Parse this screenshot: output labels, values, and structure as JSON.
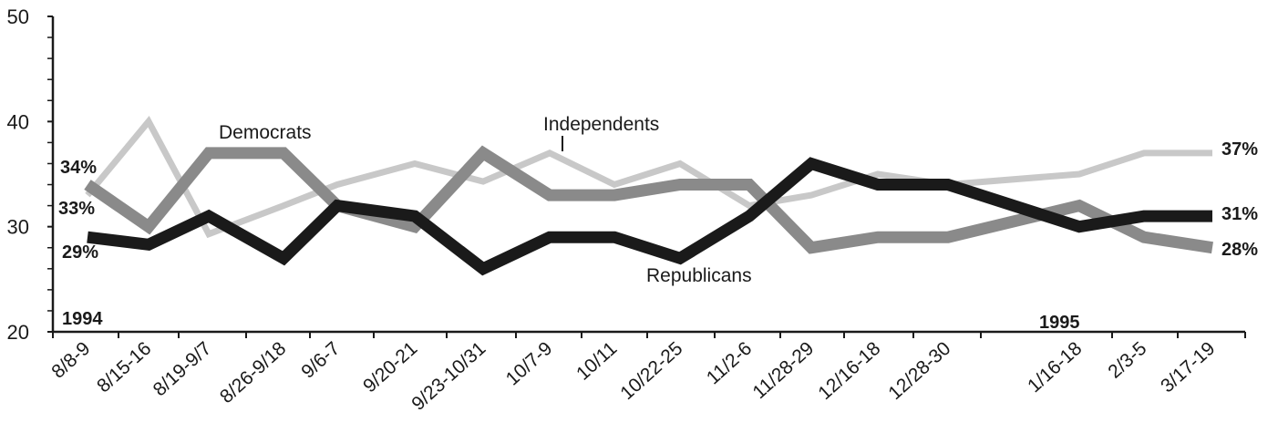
{
  "chart_data": {
    "type": "line",
    "title": "",
    "xlabel": "",
    "ylabel": "",
    "ylim": [
      20,
      50
    ],
    "yticks": [
      20,
      30,
      40,
      50
    ],
    "categories": [
      "8/8-9",
      "8/15-16",
      "8/19-9/7",
      "8/26-9/18",
      "9/6-7",
      "9/20-21",
      "9/23-10/31",
      "10/7-9",
      "10/11",
      "10/22-25",
      "11/2-6",
      "11/28-29",
      "12/16-18",
      "12/28-30",
      "1/16-18",
      "2/3-5",
      "3/17-19"
    ],
    "x": [
      0,
      1,
      2,
      3,
      4,
      5,
      6,
      7,
      8,
      9,
      10,
      11,
      12,
      13,
      14,
      15,
      16
    ],
    "series": [
      {
        "name": "Democrats",
        "color": "#8a8a8a",
        "values": [
          34,
          30,
          37,
          37,
          32,
          30,
          37,
          33,
          33,
          34,
          34,
          28,
          29,
          29,
          32,
          29,
          28
        ]
      },
      {
        "name": "Republicans",
        "color": "#1a1a1a",
        "values": [
          29,
          28.3,
          31,
          27,
          32,
          31,
          26,
          29,
          29,
          27,
          31,
          36,
          34,
          34,
          30,
          31,
          31
        ]
      },
      {
        "name": "Independents",
        "color": "#c8c8c8",
        "values": [
          33,
          40,
          29.3,
          32,
          34,
          36,
          34.3,
          37,
          34,
          36,
          32,
          33,
          35,
          34,
          35,
          37,
          37
        ]
      }
    ],
    "start_labels": [
      "34%",
      "33%",
      "29%"
    ],
    "end_labels": [
      "37%",
      "31%",
      "28%"
    ],
    "year_labels": [
      "1994",
      "1995"
    ],
    "grid": false,
    "legend": "inline labels"
  }
}
